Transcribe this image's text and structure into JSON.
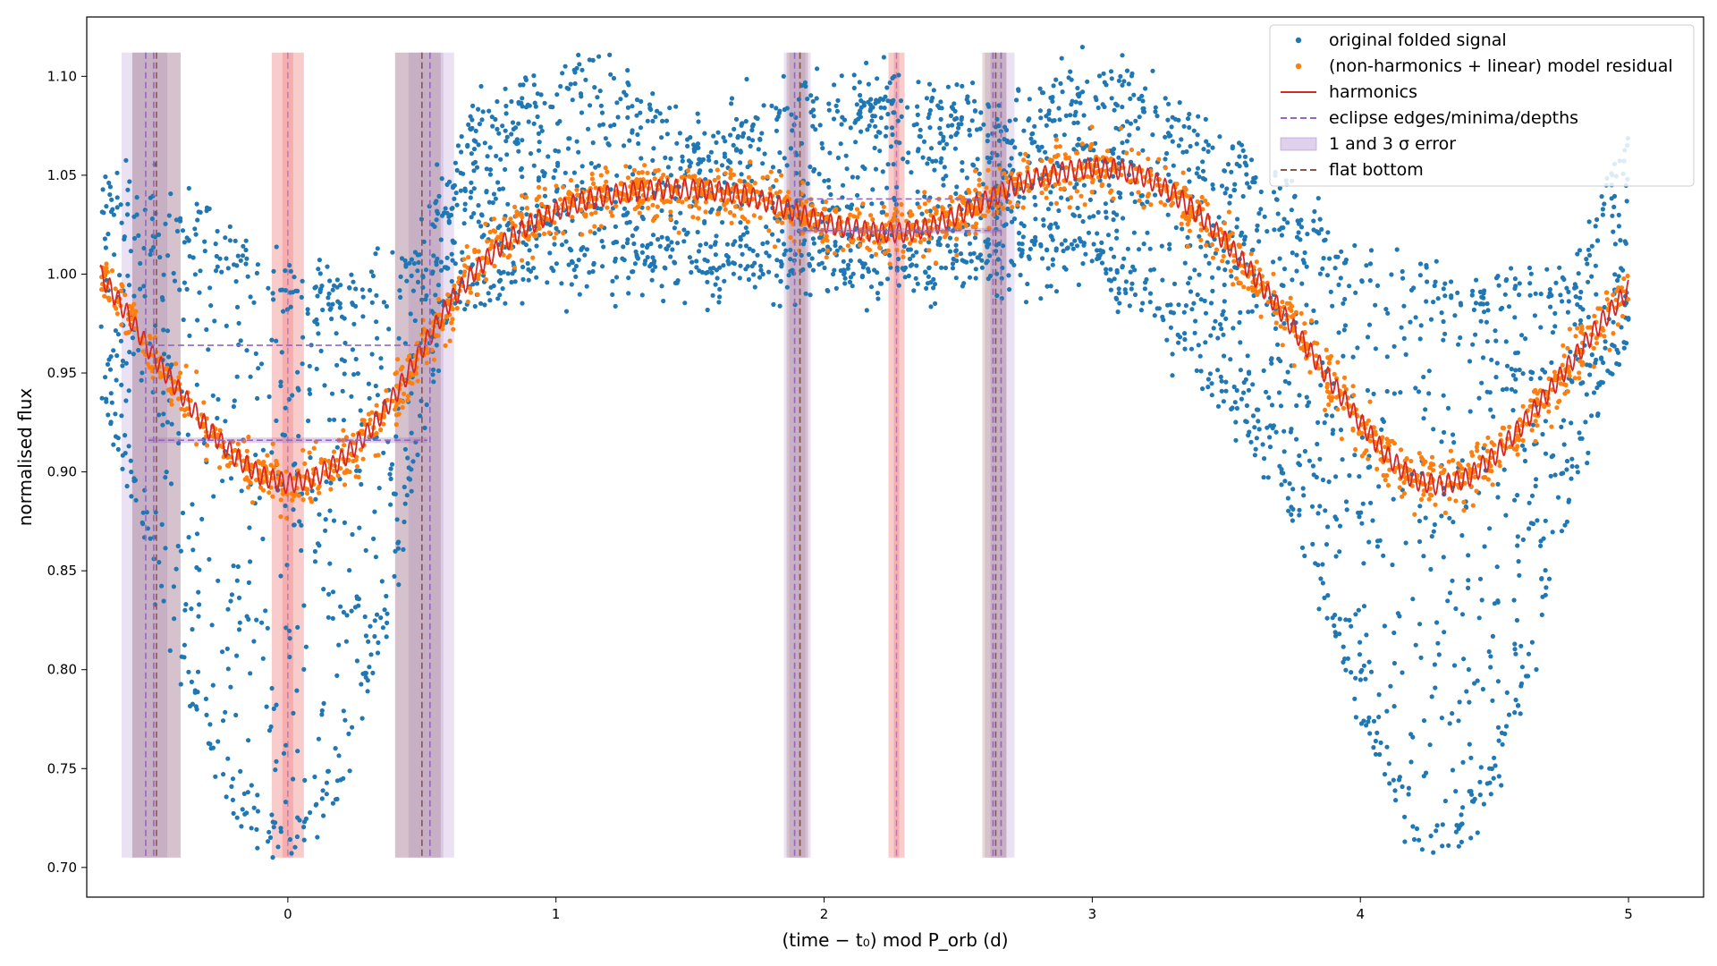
{
  "chart_data": {
    "type": "scatter",
    "title": "",
    "xlabel": "(time − t₀) mod P_orb (d)",
    "ylabel": "normalised flux",
    "xlim": [
      -0.75,
      5.28
    ],
    "ylim": [
      0.685,
      1.13
    ],
    "x_ticks": [
      0,
      1,
      2,
      3,
      4,
      5
    ],
    "x_tick_labels": [
      "0",
      "1",
      "2",
      "3",
      "4",
      "5"
    ],
    "y_ticks": [
      0.7,
      0.75,
      0.8,
      0.85,
      0.9,
      0.95,
      1.0,
      1.05,
      1.1
    ],
    "y_tick_labels": [
      "0.70",
      "0.75",
      "0.80",
      "0.85",
      "0.90",
      "0.95",
      "1.00",
      "1.05",
      "1.10"
    ],
    "grid": false,
    "legend_position": "top-right",
    "legend": [
      {
        "label": "original folded signal",
        "kind": "dot",
        "color": "#1f77b4"
      },
      {
        "label": "(non-harmonics + linear) model residual",
        "kind": "dot",
        "color": "#ff7f0e"
      },
      {
        "label": "harmonics",
        "kind": "line",
        "color": "#d62728"
      },
      {
        "label": "eclipse edges/minima/depths",
        "kind": "dashed",
        "color": "#9467bd"
      },
      {
        "label": "1 and 3 σ error",
        "kind": "patch",
        "color": "#9467bd"
      },
      {
        "label": "flat bottom",
        "kind": "dashed",
        "color": "#8c564b"
      }
    ],
    "harmonics_curve": {
      "x": [
        -0.7,
        -0.6,
        -0.5,
        -0.4,
        -0.3,
        -0.2,
        -0.1,
        0.0,
        0.1,
        0.2,
        0.3,
        0.4,
        0.5,
        0.6,
        0.7,
        0.8,
        0.9,
        1.0,
        1.1,
        1.2,
        1.3,
        1.4,
        1.5,
        1.6,
        1.7,
        1.8,
        1.9,
        2.0,
        2.1,
        2.2,
        2.3,
        2.4,
        2.5,
        2.6,
        2.7,
        2.8,
        2.9,
        3.0,
        3.1,
        3.2,
        3.3,
        3.4,
        3.5,
        3.6,
        3.7,
        3.8,
        3.9,
        4.0,
        4.1,
        4.2,
        4.3,
        4.4,
        4.5,
        4.6,
        4.7,
        4.8,
        4.9,
        5.0
      ],
      "y": [
        1.0,
        0.98,
        0.958,
        0.94,
        0.922,
        0.908,
        0.898,
        0.894,
        0.897,
        0.906,
        0.92,
        0.939,
        0.962,
        0.985,
        1.002,
        1.015,
        1.025,
        1.032,
        1.037,
        1.04,
        1.042,
        1.043,
        1.043,
        1.042,
        1.04,
        1.036,
        1.031,
        1.026,
        1.023,
        1.021,
        1.021,
        1.024,
        1.03,
        1.037,
        1.044,
        1.049,
        1.052,
        1.054,
        1.053,
        1.049,
        1.041,
        1.03,
        1.016,
        1.0,
        0.982,
        0.963,
        0.944,
        0.925,
        0.908,
        0.896,
        0.893,
        0.897,
        0.908,
        0.923,
        0.94,
        0.958,
        0.976,
        0.992
      ],
      "ripple_amplitude": 0.005,
      "color": "#d62728"
    },
    "original_signal_lower_envelope": {
      "x": [
        -0.7,
        -0.5,
        -0.3,
        -0.2,
        -0.1,
        0.0,
        0.1,
        0.2,
        0.3,
        0.4,
        0.5,
        0.6,
        0.7,
        0.8,
        1.0,
        1.5,
        2.0,
        2.5,
        3.0,
        3.3,
        3.5,
        3.7,
        3.8,
        3.9,
        4.0,
        4.1,
        4.2,
        4.3,
        4.4,
        4.5,
        4.6,
        4.7,
        4.8,
        5.0
      ],
      "y": [
        0.94,
        0.86,
        0.76,
        0.73,
        0.72,
        0.71,
        0.72,
        0.75,
        0.79,
        0.85,
        0.93,
        0.98,
        0.99,
        0.995,
        1.0,
        1.0,
        1.0,
        1.0,
        1.01,
        0.97,
        0.94,
        0.9,
        0.86,
        0.82,
        0.78,
        0.75,
        0.72,
        0.71,
        0.72,
        0.75,
        0.79,
        0.84,
        0.9,
        0.97
      ]
    },
    "original_signal_upper_envelope": {
      "x": [
        -0.7,
        -0.5,
        -0.3,
        -0.1,
        0.0,
        0.2,
        0.4,
        0.6,
        0.7,
        0.8,
        1.0,
        1.1,
        1.5,
        2.0,
        2.3,
        2.5,
        2.7,
        2.9,
        3.0,
        3.2,
        3.5,
        3.8,
        4.0,
        4.2,
        4.4,
        4.6,
        4.8,
        4.9,
        5.0
      ],
      "y": [
        1.045,
        1.03,
        1.02,
        1.0,
        0.995,
        0.99,
        0.995,
        1.04,
        1.08,
        1.09,
        1.09,
        1.11,
        1.07,
        1.09,
        1.09,
        1.085,
        1.07,
        1.09,
        1.1,
        1.09,
        1.06,
        1.03,
        1.0,
        0.995,
        0.99,
        0.99,
        1.0,
        1.03,
        1.07
      ]
    },
    "original_signal_note_points": 3600,
    "residual_points_note": 1900,
    "eclipse_minima": [
      {
        "center": 0.0,
        "bottom": 0.916,
        "depth_level": 0.964,
        "edge_left": -0.52,
        "edge_right": 0.52
      },
      {
        "center": 2.27,
        "bottom": 1.022,
        "depth_level": 1.038,
        "edge_left": 1.9,
        "edge_right": 2.66
      }
    ],
    "eclipse_edge_lines": [
      -0.53,
      -0.5,
      0.5,
      0.53,
      1.89,
      1.91,
      2.63,
      2.66
    ],
    "flat_bottom_lines": [
      -0.49,
      0.5,
      1.91,
      2.64
    ],
    "minima_lines": [
      0.0,
      2.27
    ],
    "error_bands_purple": [
      {
        "x0": -0.62,
        "x1": -0.4
      },
      {
        "x0": -0.58,
        "x1": -0.45
      },
      {
        "x0": 0.4,
        "x1": 0.62
      },
      {
        "x0": 0.45,
        "x1": 0.58
      },
      {
        "x0": 1.85,
        "x1": 1.95
      },
      {
        "x0": 1.87,
        "x1": 1.93
      },
      {
        "x0": 2.6,
        "x1": 2.71
      },
      {
        "x0": 2.62,
        "x1": 2.68
      }
    ],
    "error_bands_brown": [
      {
        "x0": -0.58,
        "x1": -0.4
      },
      {
        "x0": 0.4,
        "x1": 0.57
      },
      {
        "x0": 1.86,
        "x1": 1.94
      },
      {
        "x0": 2.59,
        "x1": 2.68
      }
    ],
    "error_bands_red": [
      {
        "x0": -0.06,
        "x1": 0.06
      },
      {
        "x0": -0.02,
        "x1": 0.02
      },
      {
        "x0": 2.24,
        "x1": 2.3
      },
      {
        "x0": 2.26,
        "x1": 2.28
      }
    ],
    "band_y_range": [
      0.705,
      1.112
    ],
    "colors": {
      "original": "#1f77b4",
      "residual": "#ff7f0e",
      "harmonics": "#d62728",
      "eclipse": "#9467bd",
      "flat_bottom": "#8c564b",
      "minima_band": "#f08080"
    }
  }
}
